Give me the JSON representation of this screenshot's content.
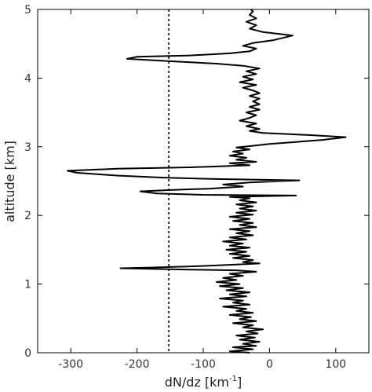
{
  "chart_data": {
    "type": "line",
    "xlabel": "dN/dz [km",
    "xlabel_sup": "-1",
    "xlabel_end": "]",
    "ylabel": "altitude [km]",
    "xlim": [
      -350,
      150
    ],
    "ylim": [
      0,
      5
    ],
    "x_ticks": [
      -300,
      -200,
      -100,
      0,
      100
    ],
    "x_tick_labels": [
      "-300",
      "-200",
      "-100",
      "0",
      "100"
    ],
    "y_ticks": [
      0,
      1,
      2,
      3,
      4,
      5
    ],
    "y_tick_labels": [
      "0",
      "1",
      "2",
      "3",
      "4",
      "5"
    ],
    "reference_line": {
      "x": -152,
      "style": "dashed"
    },
    "grid": false,
    "series": [
      {
        "color": "#000000",
        "points": [
          [
            -30,
            0.0
          ],
          [
            -60,
            0.02
          ],
          [
            -25,
            0.05
          ],
          [
            -55,
            0.08
          ],
          [
            -20,
            0.1
          ],
          [
            -40,
            0.13
          ],
          [
            -15,
            0.16
          ],
          [
            -45,
            0.19
          ],
          [
            -22,
            0.22
          ],
          [
            -50,
            0.25
          ],
          [
            -18,
            0.28
          ],
          [
            -35,
            0.31
          ],
          [
            -10,
            0.34
          ],
          [
            -40,
            0.37
          ],
          [
            -25,
            0.4
          ],
          [
            -55,
            0.43
          ],
          [
            -20,
            0.46
          ],
          [
            -45,
            0.49
          ],
          [
            -28,
            0.52
          ],
          [
            -60,
            0.55
          ],
          [
            -25,
            0.58
          ],
          [
            -50,
            0.61
          ],
          [
            -35,
            0.64
          ],
          [
            -70,
            0.67
          ],
          [
            -30,
            0.7
          ],
          [
            -55,
            0.73
          ],
          [
            -40,
            0.76
          ],
          [
            -75,
            0.79
          ],
          [
            -35,
            0.82
          ],
          [
            -60,
            0.85
          ],
          [
            -30,
            0.88
          ],
          [
            -65,
            0.91
          ],
          [
            -40,
            0.94
          ],
          [
            -75,
            0.97
          ],
          [
            -45,
            1.0
          ],
          [
            -80,
            1.03
          ],
          [
            -50,
            1.06
          ],
          [
            -70,
            1.09
          ],
          [
            -40,
            1.12
          ],
          [
            -60,
            1.15
          ],
          [
            -20,
            1.18
          ],
          [
            -50,
            1.2
          ],
          [
            -120,
            1.21
          ],
          [
            -225,
            1.23
          ],
          [
            -180,
            1.24
          ],
          [
            -110,
            1.26
          ],
          [
            -60,
            1.28
          ],
          [
            -15,
            1.3
          ],
          [
            -40,
            1.32
          ],
          [
            -25,
            1.35
          ],
          [
            -55,
            1.38
          ],
          [
            -30,
            1.41
          ],
          [
            -60,
            1.44
          ],
          [
            -35,
            1.47
          ],
          [
            -65,
            1.5
          ],
          [
            -30,
            1.53
          ],
          [
            -60,
            1.56
          ],
          [
            -40,
            1.59
          ],
          [
            -70,
            1.62
          ],
          [
            -35,
            1.65
          ],
          [
            -60,
            1.68
          ],
          [
            -25,
            1.71
          ],
          [
            -50,
            1.74
          ],
          [
            -30,
            1.77
          ],
          [
            -60,
            1.8
          ],
          [
            -20,
            1.83
          ],
          [
            -45,
            1.86
          ],
          [
            -25,
            1.89
          ],
          [
            -55,
            1.92
          ],
          [
            -30,
            1.95
          ],
          [
            -60,
            1.98
          ],
          [
            -25,
            2.01
          ],
          [
            -50,
            2.04
          ],
          [
            -20,
            2.07
          ],
          [
            -45,
            2.1
          ],
          [
            -25,
            2.13
          ],
          [
            -50,
            2.16
          ],
          [
            -20,
            2.19
          ],
          [
            -45,
            2.22
          ],
          [
            -30,
            2.25
          ],
          [
            -60,
            2.27
          ],
          [
            40,
            2.29
          ],
          [
            -100,
            2.3
          ],
          [
            -170,
            2.32
          ],
          [
            -195,
            2.35
          ],
          [
            -150,
            2.37
          ],
          [
            -90,
            2.39
          ],
          [
            -40,
            2.42
          ],
          [
            -70,
            2.45
          ],
          [
            -30,
            2.48
          ],
          [
            45,
            2.51
          ],
          [
            -80,
            2.53
          ],
          [
            -160,
            2.55
          ],
          [
            -230,
            2.58
          ],
          [
            -290,
            2.62
          ],
          [
            -305,
            2.65
          ],
          [
            -230,
            2.68
          ],
          [
            -120,
            2.7
          ],
          [
            -30,
            2.73
          ],
          [
            -60,
            2.76
          ],
          [
            -20,
            2.78
          ],
          [
            -50,
            2.81
          ],
          [
            -35,
            2.84
          ],
          [
            -60,
            2.87
          ],
          [
            -40,
            2.9
          ],
          [
            -55,
            2.93
          ],
          [
            -30,
            2.96
          ],
          [
            -50,
            2.99
          ],
          [
            -20,
            3.02
          ],
          [
            0,
            3.04
          ],
          [
            40,
            3.07
          ],
          [
            80,
            3.1
          ],
          [
            115,
            3.14
          ],
          [
            60,
            3.17
          ],
          [
            -10,
            3.2
          ],
          [
            -30,
            3.23
          ],
          [
            -15,
            3.26
          ],
          [
            -35,
            3.3
          ],
          [
            -20,
            3.34
          ],
          [
            -45,
            3.38
          ],
          [
            -30,
            3.42
          ],
          [
            -20,
            3.46
          ],
          [
            -35,
            3.5
          ],
          [
            -15,
            3.54
          ],
          [
            -30,
            3.58
          ],
          [
            -15,
            3.62
          ],
          [
            -25,
            3.66
          ],
          [
            -15,
            3.7
          ],
          [
            -30,
            3.74
          ],
          [
            -15,
            3.78
          ],
          [
            -25,
            3.82
          ],
          [
            -40,
            3.86
          ],
          [
            -20,
            3.9
          ],
          [
            -45,
            3.94
          ],
          [
            -25,
            3.98
          ],
          [
            -40,
            4.02
          ],
          [
            -20,
            4.06
          ],
          [
            -35,
            4.1
          ],
          [
            -15,
            4.14
          ],
          [
            -40,
            4.18
          ],
          [
            -80,
            4.21
          ],
          [
            -140,
            4.24
          ],
          [
            -215,
            4.28
          ],
          [
            -200,
            4.31
          ],
          [
            -120,
            4.33
          ],
          [
            -60,
            4.36
          ],
          [
            -30,
            4.39
          ],
          [
            -20,
            4.43
          ],
          [
            -40,
            4.47
          ],
          [
            -25,
            4.51
          ],
          [
            5,
            4.55
          ],
          [
            35,
            4.62
          ],
          [
            -10,
            4.67
          ],
          [
            -30,
            4.72
          ],
          [
            -20,
            4.77
          ],
          [
            -35,
            4.82
          ],
          [
            -20,
            4.87
          ],
          [
            -30,
            4.92
          ],
          [
            -25,
            4.97
          ],
          [
            -28,
            5.0
          ]
        ]
      }
    ]
  }
}
